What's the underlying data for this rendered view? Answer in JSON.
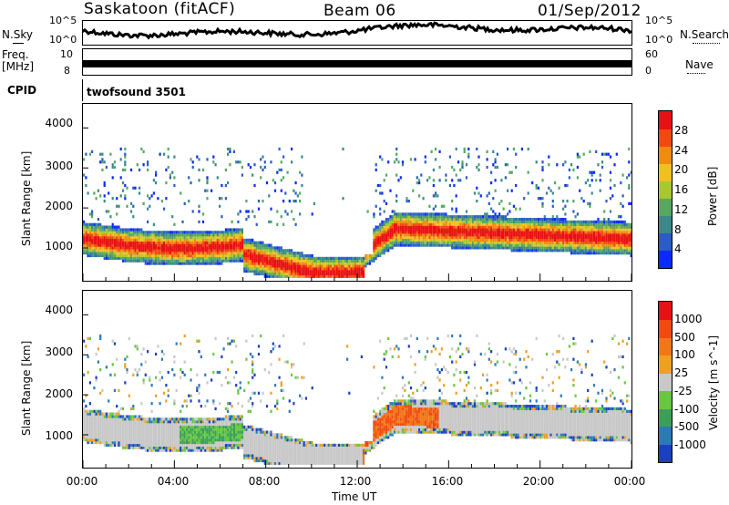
{
  "header": {
    "station": "Saskatoon (fitACF)",
    "beam": "Beam 06",
    "date": "01/Sep/2012"
  },
  "top_panels": {
    "nsky_label": "N.Sky",
    "nsky_top": "10^5",
    "nsky_bottom": "10^0",
    "nsearch_label": "N.Search",
    "nsearch_top": "10^5",
    "nsearch_bottom": "10^0",
    "freq_label_1": "Freq.",
    "freq_label_2": "[MHz]",
    "freq_top": "10",
    "freq_bottom": "8",
    "nave_label": "Nave",
    "nave_top": "60",
    "nave_bottom": "0",
    "cpid_label": "CPID",
    "cpid_value": "twofsound 3501"
  },
  "chart_data": [
    {
      "type": "heatmap",
      "name": "power",
      "ylabel": "Slant Range [km]",
      "ylim": [
        180,
        4600
      ],
      "yticks": [
        1000,
        2000,
        3000,
        4000
      ],
      "xlim": [
        0,
        24
      ],
      "colorbar": {
        "label": "Power [dB]",
        "ticks": [
          "4",
          "8",
          "12",
          "16",
          "20",
          "24",
          "28"
        ],
        "colors": [
          "#0a2aff",
          "#2a5cc8",
          "#3a8a8a",
          "#56a860",
          "#a8c830",
          "#f0c020",
          "#f08a10",
          "#f04a10",
          "#e81010"
        ]
      }
    },
    {
      "type": "heatmap",
      "name": "velocity",
      "ylabel": "Slant Range [km]",
      "ylim": [
        180,
        4600
      ],
      "yticks": [
        1000,
        2000,
        3000,
        4000
      ],
      "xlim": [
        0,
        24
      ],
      "xticks": [
        "00:00",
        "04:00",
        "08:00",
        "12:00",
        "16:00",
        "20:00",
        "00:00"
      ],
      "xlabel": "Time UT",
      "colorbar": {
        "label": "Velocity [m s^-1]",
        "ticks": [
          "1000",
          "500",
          "100",
          "25",
          "-25",
          "-100",
          "-500",
          "-1000"
        ],
        "colors": [
          "#1a40c0",
          "#2a7ab8",
          "#3aa058",
          "#66c840",
          "#c8c8c8",
          "#f0a020",
          "#f07818",
          "#f04a10",
          "#e81010"
        ]
      }
    }
  ]
}
